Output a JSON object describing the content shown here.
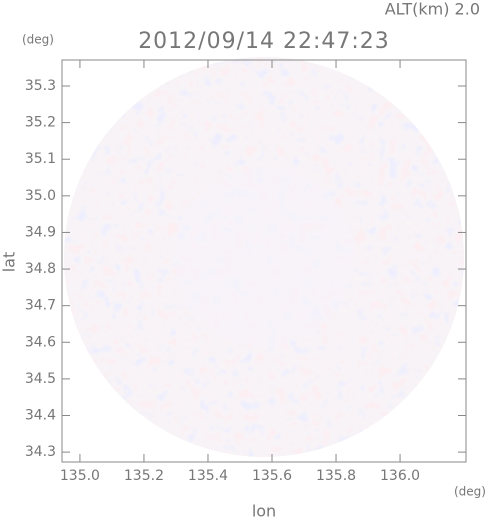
{
  "chart_data": {
    "type": "radar-image",
    "title": "2012/09/14 22:47:23",
    "subtitle": "ALT(km) 2.0",
    "x_label": "lon",
    "x_unit": "(deg)",
    "y_label": "lat",
    "y_unit": "(deg)",
    "xlim": [
      134.944,
      136.206
    ],
    "xticks": [
      {
        "value": 135.0,
        "label": "135.0"
      },
      135.2,
      135.4,
      135.6,
      135.8,
      {
        "value": 136.0,
        "label": "136.0"
      }
    ],
    "ylim": [
      34.273,
      35.371
    ],
    "yticks": [
      34.3,
      34.4,
      34.5,
      34.6,
      34.7,
      34.8,
      34.9,
      {
        "value": 35.0,
        "label": "35.0"
      },
      35.1,
      35.2,
      35.3
    ]
  }
}
